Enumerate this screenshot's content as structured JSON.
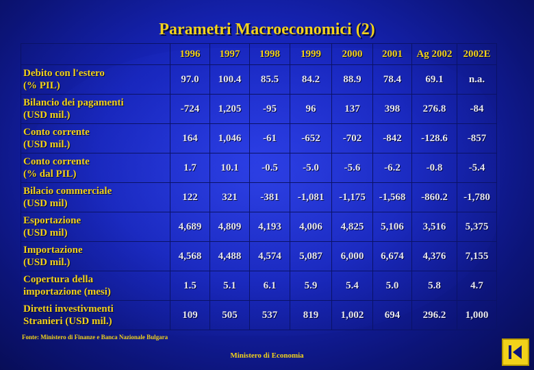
{
  "title": "Parametri Macroeconomici (2)",
  "table": {
    "years": [
      "1996",
      "1997",
      "1998",
      "1999",
      "2000",
      "2001",
      "Ag 2002",
      "2002E"
    ],
    "rows": [
      {
        "label_lines": [
          "Debito con l'estero",
          "(% PIL)"
        ],
        "values": [
          "97.0",
          "100.4",
          "85.5",
          "84.2",
          "88.9",
          "78.4",
          "69.1",
          "n.a."
        ]
      },
      {
        "label_lines": [
          "Bilancio dei pagamenti",
          "(USD mil.)"
        ],
        "values": [
          "-724",
          "1,205",
          "-95",
          "96",
          "137",
          "398",
          "276.8",
          "-84"
        ]
      },
      {
        "label_lines": [
          "Conto corrente",
          "(USD mil.)"
        ],
        "values": [
          "164",
          "1,046",
          "-61",
          "-652",
          "-702",
          "-842",
          "-128.6",
          "-857"
        ]
      },
      {
        "label_lines": [
          "Conto corrente",
          "(% dal PIL)"
        ],
        "values": [
          "1.7",
          "10.1",
          "-0.5",
          "-5.0",
          "-5.6",
          "-6.2",
          "-0.8",
          "-5.4"
        ]
      },
      {
        "label_lines": [
          "Bilacio commerciale",
          "(USD mil)"
        ],
        "values": [
          "122",
          "321",
          "-381",
          "-1,081",
          "-1,175",
          "-1,568",
          "-860.2",
          "-1,780"
        ]
      },
      {
        "label_lines": [
          "Esportazione",
          "(USD mil)"
        ],
        "values": [
          "4,689",
          "4,809",
          "4,193",
          "4,006",
          "4,825",
          "5,106",
          "3,516",
          "5,375"
        ]
      },
      {
        "label_lines": [
          "Importazione",
          "(USD mil.)"
        ],
        "values": [
          "4,568",
          "4,488",
          "4,574",
          "5,087",
          "6,000",
          "6,674",
          "4,376",
          "7,155"
        ]
      },
      {
        "label_lines": [
          "Copertura della",
          " importazione (mesi)"
        ],
        "values": [
          "1.5",
          "5.1",
          "6.1",
          "5.9",
          "5.4",
          "5.0",
          "5.8",
          "4.7"
        ]
      },
      {
        "label_lines": [
          "Diretti investivmenti",
          "Stranieri (USD mil.)"
        ],
        "values": [
          "109",
          "505",
          "537",
          "819",
          "1,002",
          "694",
          "296.2",
          "1,000"
        ]
      }
    ]
  },
  "source": "Fonte: Ministero di Finanze e Banca Nazionale Bulgara",
  "footer": "Ministero di Economia",
  "nav": {
    "icon": "end-slide-icon",
    "color": "#f2d21a"
  }
}
